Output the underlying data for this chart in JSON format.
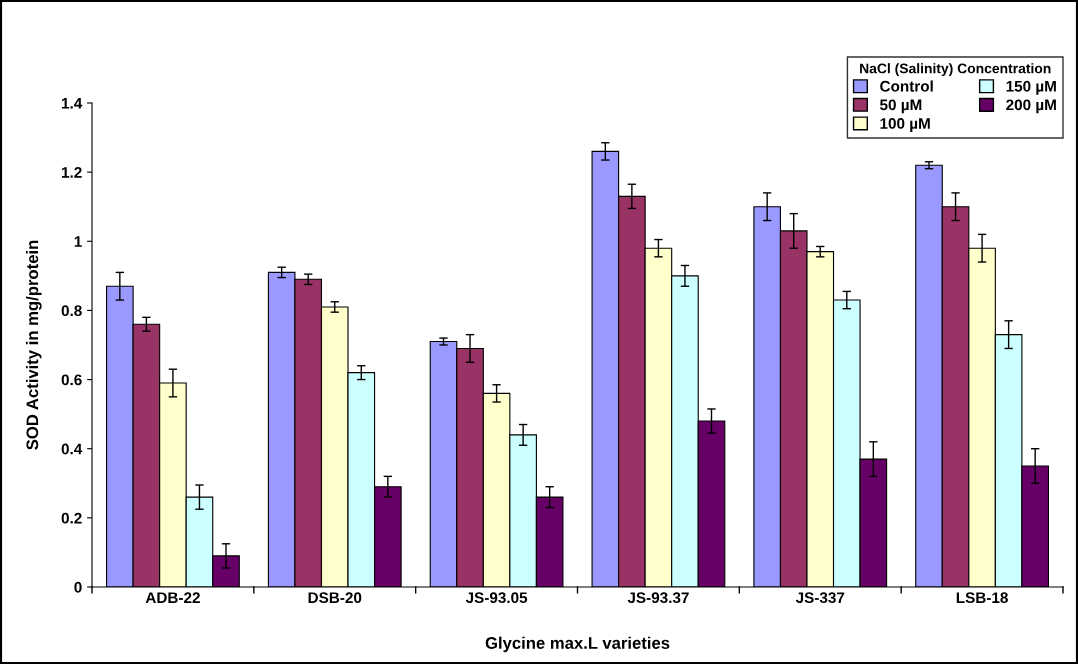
{
  "chart_data": {
    "type": "bar",
    "xlabel": "Glycine max.L varieties",
    "ylabel": "SOD Activity in mg/protein",
    "legend_title": "NaCl (Salinity) Concentration",
    "categories": [
      "ADB-22",
      "DSB-20",
      "JS-93.05",
      "JS-93.37",
      "JS-337",
      "LSB-18"
    ],
    "series": [
      {
        "name": "Control",
        "color": "#9999ff",
        "values": [
          0.87,
          0.91,
          0.71,
          1.26,
          1.1,
          1.22
        ],
        "errors": [
          0.04,
          0.015,
          0.01,
          0.025,
          0.04,
          0.01
        ]
      },
      {
        "name": "50 µM",
        "color": "#993366",
        "values": [
          0.76,
          0.89,
          0.69,
          1.13,
          1.03,
          1.1
        ],
        "errors": [
          0.02,
          0.015,
          0.04,
          0.035,
          0.05,
          0.04
        ]
      },
      {
        "name": "100 µM",
        "color": "#ffffcc",
        "values": [
          0.59,
          0.81,
          0.56,
          0.98,
          0.97,
          0.98
        ],
        "errors": [
          0.04,
          0.015,
          0.025,
          0.025,
          0.015,
          0.04
        ]
      },
      {
        "name": "150 µM",
        "color": "#ccffff",
        "values": [
          0.26,
          0.62,
          0.44,
          0.9,
          0.83,
          0.73
        ],
        "errors": [
          0.035,
          0.02,
          0.03,
          0.03,
          0.025,
          0.04
        ]
      },
      {
        "name": "200 µM",
        "color": "#660066",
        "values": [
          0.09,
          0.29,
          0.26,
          0.48,
          0.37,
          0.35
        ],
        "errors": [
          0.035,
          0.03,
          0.03,
          0.035,
          0.05,
          0.05
        ]
      }
    ],
    "ylim": [
      0,
      1.4
    ],
    "yticks": [
      0,
      0.2,
      0.4,
      0.6,
      0.8,
      1,
      1.2,
      1.4
    ],
    "grid": false,
    "legend": "top right"
  }
}
